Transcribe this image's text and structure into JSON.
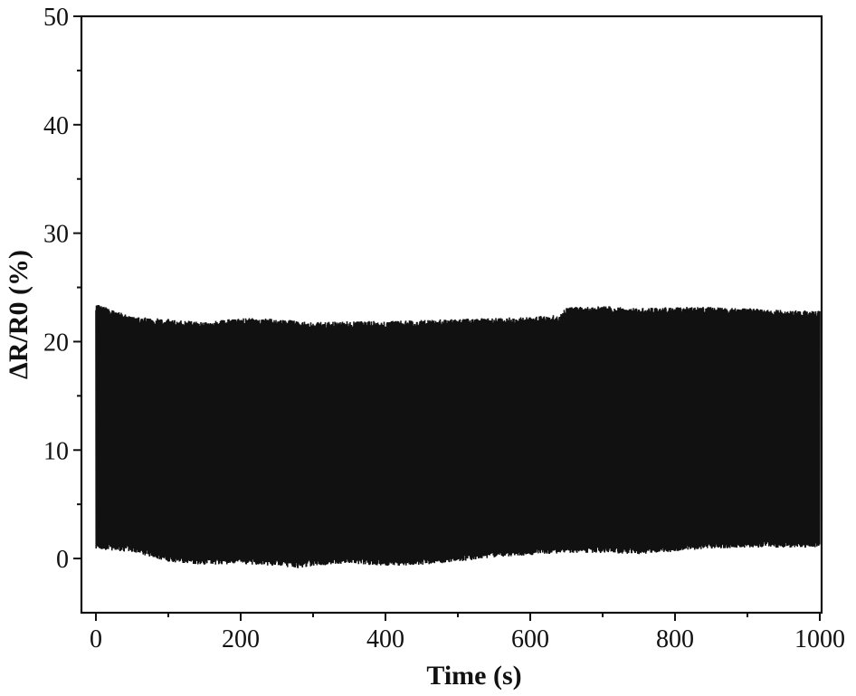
{
  "chart_data": {
    "type": "line",
    "title": "",
    "xlabel": "Time (s)",
    "ylabel": "ΔR/R0 (%)",
    "xlim": [
      0,
      1000
    ],
    "ylim": [
      -5,
      50
    ],
    "x_ticks": [
      0,
      200,
      400,
      600,
      800,
      1000
    ],
    "x_tick_labels": [
      "0",
      "200",
      "400",
      "600",
      "800",
      "1000"
    ],
    "y_ticks": [
      0,
      10,
      20,
      30,
      40,
      50
    ],
    "y_tick_labels": [
      "0",
      "10",
      "20",
      "30",
      "40",
      "50"
    ],
    "grid": false,
    "legend": "none",
    "series": [
      {
        "color": "#111111",
        "signal": "cyclic oscillation",
        "envelope_upper": {
          "x": [
            0,
            50,
            100,
            150,
            200,
            250,
            300,
            350,
            400,
            450,
            500,
            550,
            600,
            640,
            650,
            700,
            750,
            800,
            850,
            900,
            950,
            1000
          ],
          "y": [
            23.2,
            22.0,
            21.8,
            21.5,
            21.9,
            21.8,
            21.5,
            21.6,
            21.6,
            21.7,
            21.8,
            21.9,
            22.0,
            22.2,
            22.9,
            23.0,
            22.8,
            22.9,
            22.9,
            22.8,
            22.6,
            22.6
          ]
        },
        "envelope_lower": {
          "x": [
            0,
            50,
            100,
            150,
            200,
            250,
            280,
            300,
            350,
            400,
            450,
            500,
            550,
            600,
            650,
            700,
            750,
            800,
            850,
            900,
            950,
            1000
          ],
          "y": [
            1.1,
            0.9,
            0.0,
            -0.3,
            -0.2,
            -0.4,
            -0.6,
            -0.4,
            -0.2,
            -0.4,
            -0.3,
            0.0,
            0.4,
            0.6,
            0.8,
            0.8,
            0.7,
            0.9,
            1.2,
            1.3,
            1.3,
            1.3
          ]
        }
      }
    ]
  }
}
